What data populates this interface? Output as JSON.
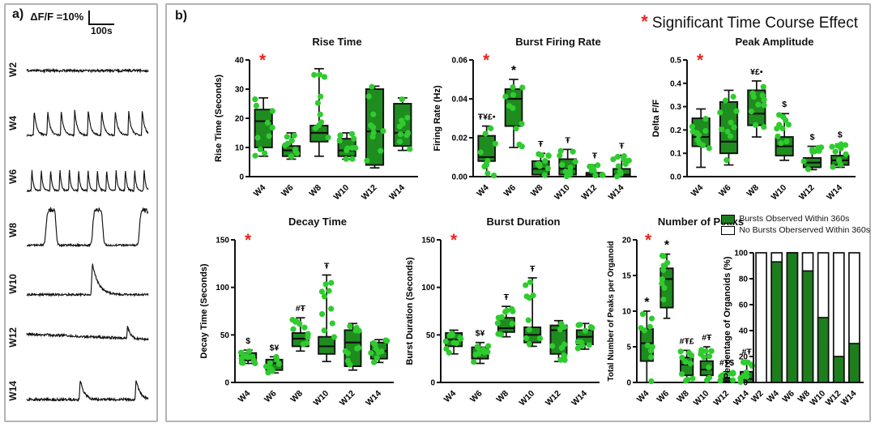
{
  "figure": {
    "panel_a_label": "a)",
    "panel_b_label": "b)",
    "scale_label": "ΔF/F =10%",
    "scale_time": "100s",
    "header_asterisk": "*",
    "header_note": "Significant Time Course Effect",
    "sig_symbol": "*"
  },
  "colors": {
    "box_fill": "#1f8c1f",
    "dot": "#2fcb2f",
    "bar_green": "#1e7e1e",
    "bar_white": "#ffffff",
    "accent_red": "#e8251d",
    "line_black": "#111111",
    "panel_border": "#b3b3b3"
  },
  "traces": [
    {
      "label": "W2",
      "pattern": "flat-noise",
      "events": 0
    },
    {
      "label": "W4",
      "pattern": "regular-spikes",
      "events": 9
    },
    {
      "label": "W6",
      "pattern": "regular-spikes",
      "events": 13
    },
    {
      "label": "W8",
      "pattern": "broad-bursts",
      "events": 3
    },
    {
      "label": "W10",
      "pattern": "single-burst",
      "events": 1
    },
    {
      "label": "W12",
      "pattern": "flat-small-bump",
      "events": 1
    },
    {
      "label": "W14",
      "pattern": "two-bumps",
      "events": 2
    }
  ],
  "chart_data": [
    {
      "type": "box",
      "title": "Rise Time",
      "ylabel": "Rise Time (Seconds)",
      "ylim": [
        0,
        40
      ],
      "yticks": [
        0,
        10,
        20,
        30,
        40
      ],
      "ytick_labels": [
        "0",
        "10",
        "20",
        "30",
        "40"
      ],
      "categories": [
        "W4",
        "W6",
        "W8",
        "W10",
        "W12",
        "W14"
      ],
      "significant": true,
      "boxes": [
        {
          "lo": 7,
          "q1": 10,
          "med": 19,
          "q3": 23,
          "hi": 27,
          "ann": ""
        },
        {
          "lo": 6,
          "q1": 7,
          "med": 9,
          "q3": 10.5,
          "hi": 15,
          "ann": ""
        },
        {
          "lo": 7,
          "q1": 12,
          "med": 15,
          "q3": 17.5,
          "hi": 37,
          "ann": ""
        },
        {
          "lo": 6,
          "q1": 7,
          "med": 9,
          "q3": 13,
          "hi": 15,
          "ann": ""
        },
        {
          "lo": 3,
          "q1": 4,
          "med": 15.5,
          "q3": 30,
          "hi": 31,
          "ann": ""
        },
        {
          "lo": 9,
          "q1": 10.5,
          "med": 15,
          "q3": 25,
          "hi": 27,
          "ann": ""
        }
      ]
    },
    {
      "type": "box",
      "title": "Burst Firing Rate",
      "ylabel": "Firing Rate (Hz)",
      "ylim": [
        0,
        0.06
      ],
      "yticks": [
        0,
        0.02,
        0.04,
        0.06
      ],
      "ytick_labels": [
        "0.00",
        "0.02",
        "0.04",
        "0.06"
      ],
      "categories": [
        "W4",
        "W6",
        "W8",
        "W10",
        "W12",
        "W14"
      ],
      "significant": true,
      "boxes": [
        {
          "lo": 0,
          "q1": 0.008,
          "med": 0.01,
          "q3": 0.021,
          "hi": 0.026,
          "ann": "Ŧ¥£•"
        },
        {
          "lo": 0.015,
          "q1": 0.026,
          "med": 0.04,
          "q3": 0.045,
          "hi": 0.05,
          "ann": "*"
        },
        {
          "lo": 0,
          "q1": 0.001,
          "med": 0.004,
          "q3": 0.008,
          "hi": 0.012,
          "ann": "Ŧ"
        },
        {
          "lo": 0,
          "q1": 0.001,
          "med": 0.004,
          "q3": 0.009,
          "hi": 0.014,
          "ann": "Ŧ"
        },
        {
          "lo": 0,
          "q1": 0,
          "med": 0.001,
          "q3": 0.002,
          "hi": 0.006,
          "ann": "Ŧ"
        },
        {
          "lo": 0,
          "q1": 0,
          "med": 0.001,
          "q3": 0.004,
          "hi": 0.011,
          "ann": "Ŧ"
        }
      ]
    },
    {
      "type": "box",
      "title": "Peak Amplitude",
      "ylabel": "Delta F/F",
      "ylim": [
        0,
        0.5
      ],
      "yticks": [
        0,
        0.1,
        0.2,
        0.3,
        0.4,
        0.5
      ],
      "ytick_labels": [
        "0.0",
        "0.1",
        "0.2",
        "0.3",
        "0.4",
        "0.5"
      ],
      "categories": [
        "W4",
        "W6",
        "W8",
        "W10",
        "W12",
        "W14"
      ],
      "significant": true,
      "boxes": [
        {
          "lo": 0.04,
          "q1": 0.13,
          "med": 0.17,
          "q3": 0.25,
          "hi": 0.29,
          "ann": ""
        },
        {
          "lo": 0.05,
          "q1": 0.1,
          "med": 0.15,
          "q3": 0.32,
          "hi": 0.37,
          "ann": ""
        },
        {
          "lo": 0.17,
          "q1": 0.22,
          "med": 0.27,
          "q3": 0.37,
          "hi": 0.41,
          "ann": "¥£•"
        },
        {
          "lo": 0.07,
          "q1": 0.09,
          "med": 0.13,
          "q3": 0.17,
          "hi": 0.27,
          "ann": "$"
        },
        {
          "lo": 0.03,
          "q1": 0.04,
          "med": 0.06,
          "q3": 0.08,
          "hi": 0.13,
          "ann": "$"
        },
        {
          "lo": 0.04,
          "q1": 0.05,
          "med": 0.07,
          "q3": 0.09,
          "hi": 0.14,
          "ann": "$"
        }
      ]
    },
    {
      "type": "box",
      "title": "Decay Time",
      "ylabel": "Decay Time (Seconds)",
      "ylim": [
        0,
        150
      ],
      "yticks": [
        0,
        50,
        100,
        150
      ],
      "ytick_labels": [
        "0",
        "50",
        "100",
        "150"
      ],
      "categories": [
        "W4",
        "W6",
        "W8",
        "W10",
        "W12",
        "W14"
      ],
      "significant": true,
      "boxes": [
        {
          "lo": 20,
          "q1": 23,
          "med": 27,
          "q3": 31,
          "hi": 34,
          "ann": "$"
        },
        {
          "lo": 10,
          "q1": 13,
          "med": 20,
          "q3": 24,
          "hi": 27,
          "ann": "$¥"
        },
        {
          "lo": 33,
          "q1": 38,
          "med": 46,
          "q3": 52,
          "hi": 68,
          "ann": "#Ŧ"
        },
        {
          "lo": 22,
          "q1": 30,
          "med": 38,
          "q3": 48,
          "hi": 113,
          "ann": "Ŧ"
        },
        {
          "lo": 13,
          "q1": 17,
          "med": 42,
          "q3": 55,
          "hi": 62,
          "ann": ""
        },
        {
          "lo": 21,
          "q1": 25,
          "med": 33,
          "q3": 42,
          "hi": 45,
          "ann": ""
        }
      ]
    },
    {
      "type": "box",
      "title": "Burst Duration",
      "ylabel": "Burst Duration (Seconds)",
      "ylim": [
        0,
        150
      ],
      "yticks": [
        0,
        50,
        100,
        150
      ],
      "ytick_labels": [
        "0",
        "50",
        "100",
        "150"
      ],
      "categories": [
        "W4",
        "W6",
        "W8",
        "W10",
        "W12",
        "W14"
      ],
      "significant": true,
      "boxes": [
        {
          "lo": 30,
          "q1": 38,
          "med": 45,
          "q3": 52,
          "hi": 55,
          "ann": ""
        },
        {
          "lo": 20,
          "q1": 25,
          "med": 30,
          "q3": 37,
          "hi": 42,
          "ann": "$¥"
        },
        {
          "lo": 48,
          "q1": 53,
          "med": 57,
          "q3": 68,
          "hi": 80,
          "ann": "Ŧ"
        },
        {
          "lo": 38,
          "q1": 42,
          "med": 50,
          "q3": 58,
          "hi": 110,
          "ann": "Ŧ"
        },
        {
          "lo": 22,
          "q1": 30,
          "med": 55,
          "q3": 60,
          "hi": 65,
          "ann": ""
        },
        {
          "lo": 35,
          "q1": 40,
          "med": 48,
          "q3": 55,
          "hi": 62,
          "ann": ""
        }
      ]
    },
    {
      "type": "box",
      "title": "Number of Peaks",
      "ylabel": "Total Number of Peaks per Organoid",
      "ylim": [
        0,
        20
      ],
      "yticks": [
        0,
        5,
        10,
        15,
        20
      ],
      "ytick_labels": [
        "0",
        "5",
        "10",
        "15",
        "20"
      ],
      "categories": [
        "W4",
        "W6",
        "W8",
        "W10",
        "W12",
        "W14"
      ],
      "significant": true,
      "boxes": [
        {
          "lo": 0,
          "q1": 3,
          "med": 5.5,
          "q3": 7.5,
          "hi": 10,
          "ann": "*"
        },
        {
          "lo": 9,
          "q1": 10.5,
          "med": 14.5,
          "q3": 16,
          "hi": 18,
          "ann": "*"
        },
        {
          "lo": 0,
          "q1": 1,
          "med": 2.5,
          "q3": 3.5,
          "hi": 4.5,
          "ann": "#Ŧ£"
        },
        {
          "lo": 0,
          "q1": 1,
          "med": 1.8,
          "q3": 3,
          "hi": 5,
          "ann": "#Ŧ"
        },
        {
          "lo": 0,
          "q1": 0,
          "med": 0.2,
          "q3": 0.5,
          "hi": 1.5,
          "ann": "#Ŧ$"
        },
        {
          "lo": 0,
          "q1": 0,
          "med": 0.5,
          "q3": 1.5,
          "hi": 3,
          "ann": "#Ŧ"
        }
      ]
    },
    {
      "type": "bar",
      "title": "",
      "ylabel": "Percentage of Organoids  (%)",
      "ylim": [
        0,
        100
      ],
      "yticks": [
        0,
        20,
        40,
        60,
        80,
        100
      ],
      "ytick_labels": [
        "0",
        "20",
        "40",
        "60",
        "80",
        "100"
      ],
      "categories": [
        "W2",
        "W4",
        "W6",
        "W8",
        "W10",
        "W12",
        "W14"
      ],
      "values": [
        0,
        93,
        100,
        86,
        50,
        20,
        30
      ],
      "legend": [
        {
          "label": "Bursts Observed Within 360s",
          "fill": "green"
        },
        {
          "label": "No Bursts Oberserved Within 360s",
          "fill": "white"
        }
      ]
    }
  ]
}
